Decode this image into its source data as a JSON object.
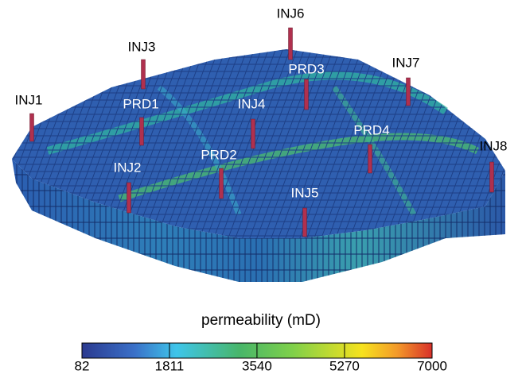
{
  "wells": [
    {
      "label": "INJ1"
    },
    {
      "label": "INJ3"
    },
    {
      "label": "INJ6"
    },
    {
      "label": "PRD3"
    },
    {
      "label": "INJ7"
    },
    {
      "label": "PRD1"
    },
    {
      "label": "INJ4"
    },
    {
      "label": "PRD4"
    },
    {
      "label": "INJ8"
    },
    {
      "label": "INJ2"
    },
    {
      "label": "PRD2"
    },
    {
      "label": "INJ5"
    }
  ],
  "colorbar": {
    "label": "permeability (mD)",
    "range": [
      82,
      7000
    ],
    "ticks": [
      82,
      1811,
      3540,
      5270,
      7000
    ]
  }
}
